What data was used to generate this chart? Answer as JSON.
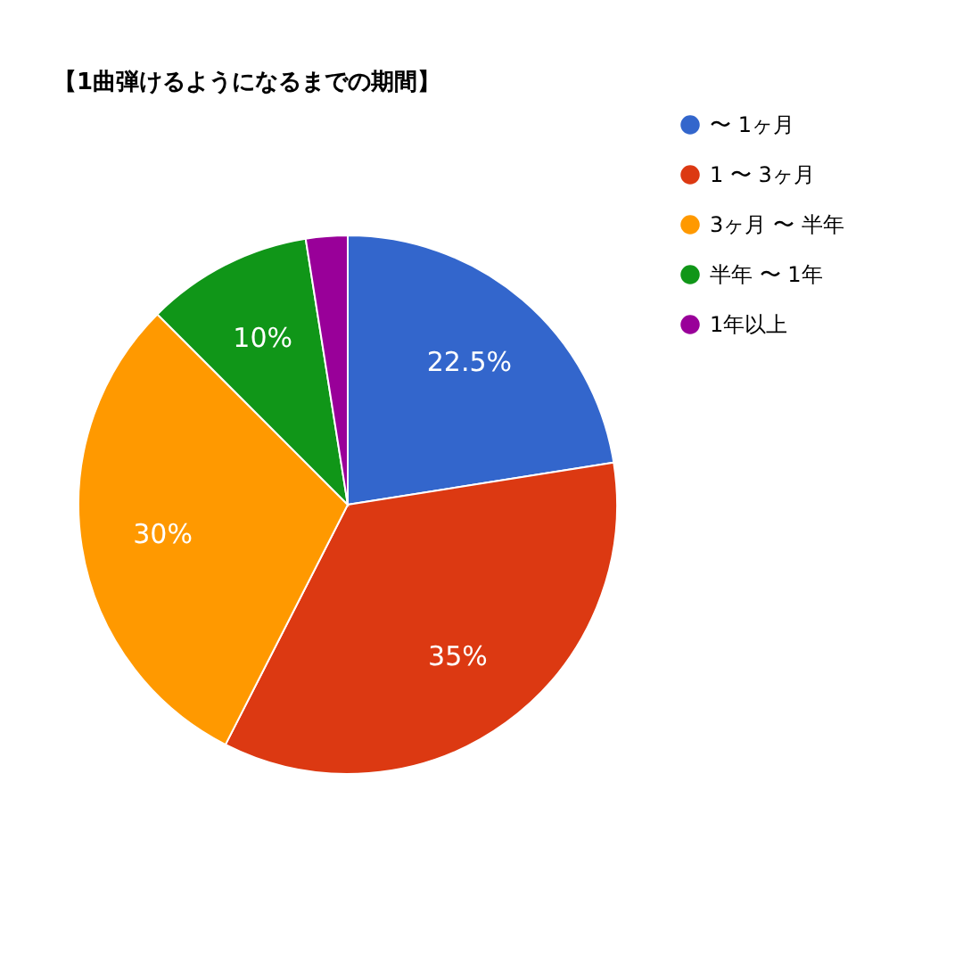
{
  "chart_data": {
    "type": "pie",
    "title": "【1曲弾けるようになるまでの期間】",
    "categories": [
      "〜 1ヶ月",
      "1 〜 3ヶ月",
      "3ヶ月 〜 半年",
      "半年 〜 1年",
      "1年以上"
    ],
    "values": [
      22.5,
      35,
      30,
      10,
      2.5
    ],
    "value_labels": [
      "22.5%",
      "35%",
      "30%",
      "10%",
      null
    ],
    "colors": [
      "#3366cc",
      "#dc3912",
      "#ff9900",
      "#109618",
      "#990099"
    ],
    "legend": "top right"
  }
}
